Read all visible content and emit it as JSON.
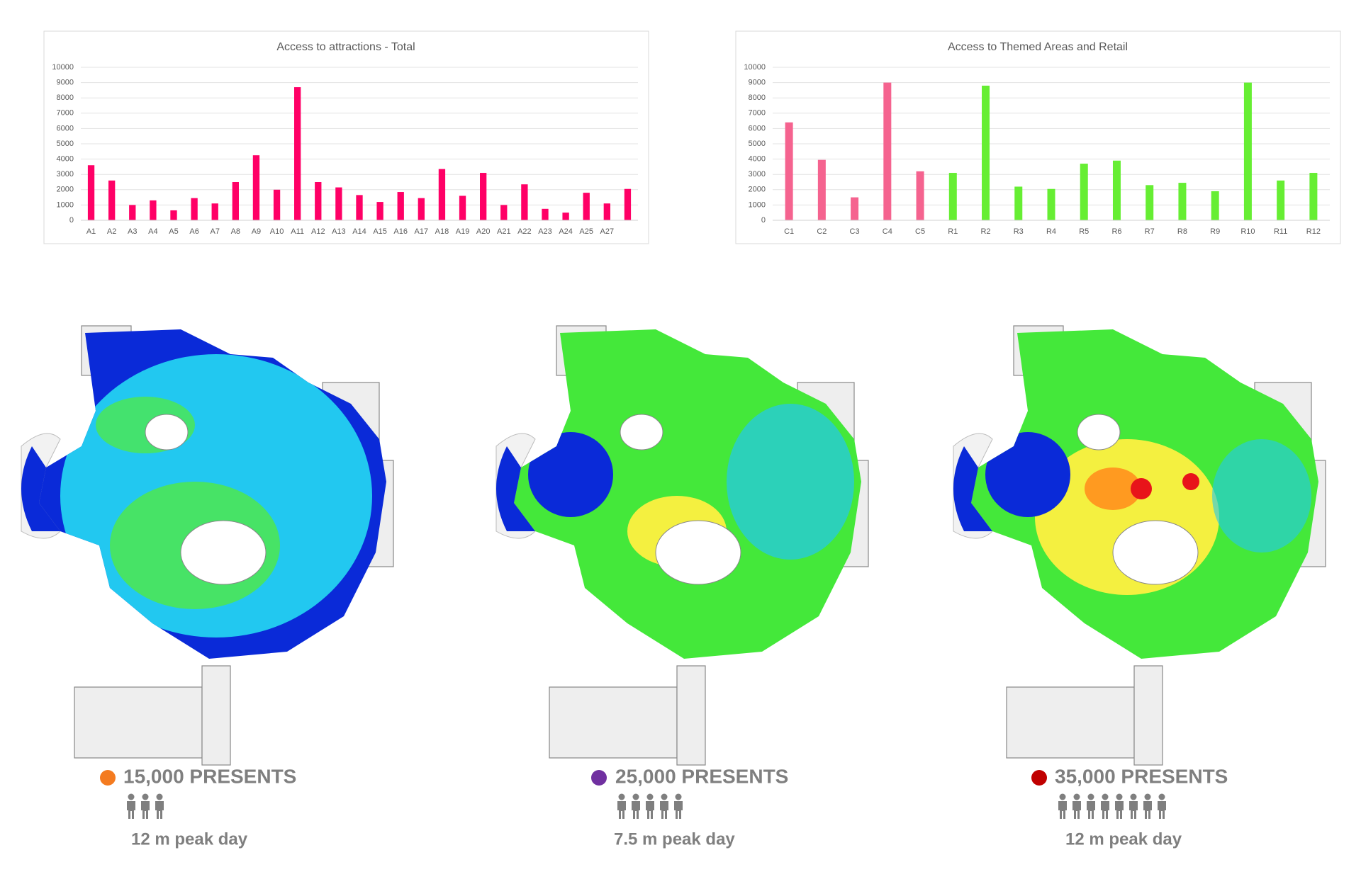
{
  "chart_data": [
    {
      "type": "bar",
      "title": "Access to attractions - Total",
      "categories": [
        "A1",
        "A2",
        "A3",
        "A4",
        "A5",
        "A6",
        "A7",
        "A8",
        "A9",
        "A10",
        "A11",
        "A12",
        "A13",
        "A14",
        "A15",
        "A16",
        "A17",
        "A18",
        "A19",
        "A20",
        "A21",
        "A22",
        "A23",
        "A24",
        "A25",
        "A27",
        null
      ],
      "values": [
        3600,
        2600,
        1000,
        1300,
        650,
        1450,
        1100,
        2500,
        4250,
        2000,
        8700,
        2500,
        2150,
        1650,
        1200,
        1850,
        1450,
        3350,
        1600,
        3100,
        1000,
        2350,
        750,
        500,
        1800,
        1100,
        2050
      ],
      "color": "#ff0066",
      "ylim": [
        0,
        10000
      ],
      "yticks": [
        0,
        1000,
        2000,
        3000,
        4000,
        5000,
        6000,
        7000,
        8000,
        9000,
        10000
      ],
      "grid": true
    },
    {
      "type": "bar",
      "title": "Access to Themed Areas and Retail",
      "categories": [
        "C1",
        "C2",
        "C3",
        "C4",
        "C5",
        "R1",
        "R2",
        "R3",
        "R4",
        "R5",
        "R6",
        "R7",
        "R8",
        "R9",
        "R10",
        "R11",
        "R12"
      ],
      "values": [
        6400,
        3950,
        1500,
        9000,
        3200,
        3100,
        8800,
        2200,
        2050,
        3700,
        3900,
        2300,
        2450,
        1900,
        9000,
        2600,
        3100
      ],
      "colors": [
        "#f5638f",
        "#f5638f",
        "#f5638f",
        "#f5638f",
        "#f5638f",
        "#66ee33",
        "#66ee33",
        "#66ee33",
        "#66ee33",
        "#66ee33",
        "#66ee33",
        "#66ee33",
        "#66ee33",
        "#66ee33",
        "#66ee33",
        "#66ee33",
        "#66ee33"
      ],
      "ylim": [
        0,
        10000
      ],
      "yticks": [
        0,
        1000,
        2000,
        3000,
        4000,
        5000,
        6000,
        7000,
        8000,
        9000,
        10000
      ],
      "grid": true
    }
  ],
  "scenarios": [
    {
      "label": "15,000 PRESENTS",
      "note": "12 m peak day",
      "color": "#f47b20"
    },
    {
      "label": "25,000 PRESENTS",
      "note": "7.5 m peak day",
      "color": "#7030a0"
    },
    {
      "label": "35,000 PRESENTS",
      "note": "12 m peak day",
      "color": "#c00000"
    }
  ]
}
